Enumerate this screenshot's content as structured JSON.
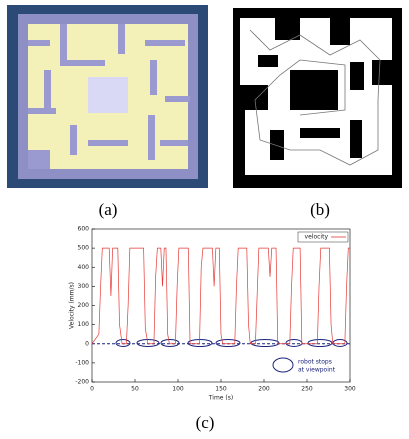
{
  "captions": {
    "a": "(a)",
    "b": "(b)",
    "c": "(c)"
  },
  "chart_data": {
    "type": "line",
    "x_label": "Time (s)",
    "y_label": "Velocity (mm/s)",
    "xlim": [
      0,
      300
    ],
    "ylim": [
      -200,
      600
    ],
    "xticks": [
      0,
      50,
      100,
      150,
      200,
      250,
      300
    ],
    "yticks": [
      -200,
      -100,
      0,
      100,
      200,
      300,
      400,
      500,
      600
    ],
    "reference_line": 0,
    "reference_color": "#1a237e",
    "legend": "upper right",
    "annotation": [
      "robot stops",
      "at viewpoint"
    ],
    "x": [
      0,
      8,
      10,
      12,
      20,
      22,
      24,
      30,
      32,
      35,
      40,
      42,
      44,
      60,
      62,
      65,
      72,
      74,
      76,
      80,
      82,
      84,
      86,
      88,
      90,
      97,
      99,
      101,
      112,
      114,
      125,
      127,
      129,
      140,
      142,
      144,
      148,
      150,
      152,
      166,
      168,
      170,
      180,
      182,
      184,
      190,
      192,
      194,
      205,
      207,
      209,
      214,
      216,
      230,
      232,
      234,
      242,
      244,
      262,
      264,
      266,
      276,
      278,
      280,
      294,
      296,
      298,
      300
    ],
    "series": [
      {
        "name": "velocity",
        "color": "#e53935",
        "values": [
          0,
          50,
          300,
          500,
          500,
          250,
          500,
          500,
          100,
          0,
          0,
          200,
          500,
          500,
          80,
          0,
          0,
          350,
          500,
          500,
          300,
          500,
          500,
          50,
          0,
          0,
          300,
          500,
          500,
          0,
          0,
          400,
          500,
          500,
          300,
          500,
          500,
          50,
          0,
          0,
          300,
          500,
          500,
          100,
          0,
          0,
          250,
          500,
          500,
          350,
          500,
          500,
          0,
          0,
          300,
          500,
          500,
          0,
          0,
          300,
          500,
          500,
          100,
          0,
          0,
          300,
          500,
          500
        ]
      }
    ]
  }
}
